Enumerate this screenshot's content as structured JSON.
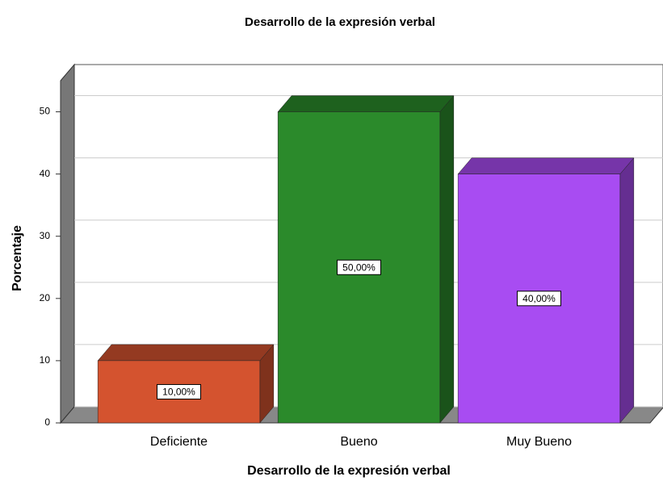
{
  "chart_data": {
    "type": "bar3d",
    "title": "Desarrollo de la expresión verbal",
    "x_label": "Desarrollo de la expresión verbal",
    "y_label": "Porcentaje",
    "categories": [
      "Deficiente",
      "Bueno",
      "Muy Bueno"
    ],
    "values": [
      10,
      50,
      40
    ],
    "value_labels": [
      "10,00%",
      "50,00%",
      "40,00%"
    ],
    "colors": [
      "#d4532f",
      "#2b8a2b",
      "#a84cf2"
    ],
    "ylim": [
      0,
      55
    ],
    "yticks": [
      0,
      10,
      20,
      30,
      40,
      50
    ],
    "grid": true
  }
}
